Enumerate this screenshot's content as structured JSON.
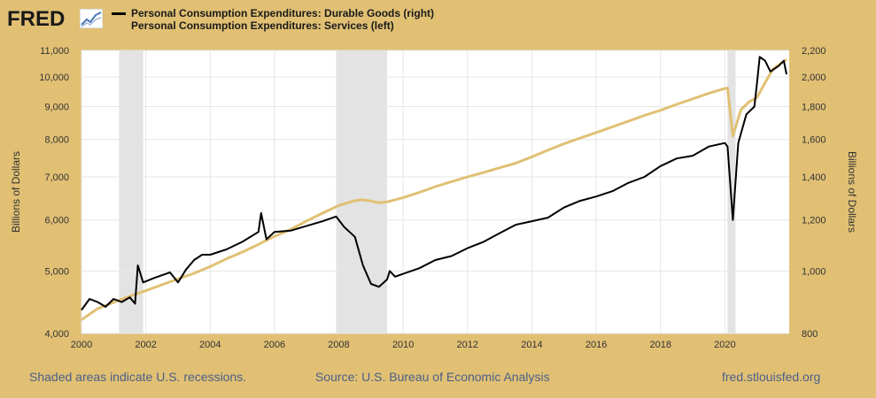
{
  "header": {
    "logo_text": "FRED",
    "logo_icon": "trend-chart-icon",
    "legend": [
      {
        "text": "Personal Consumption Expenditures: Durable Goods (right)",
        "color": "#000000"
      },
      {
        "text": "Personal Consumption Expenditures: Services (left)",
        "color": "#e1c074"
      }
    ]
  },
  "footer": {
    "recession_note": "Shaded areas indicate U.S. recessions.",
    "source": "Source: U.S. Bureau of Economic Analysis",
    "site": "fred.stlouisfed.org"
  },
  "chart_data": {
    "type": "line",
    "ylabel_left": "Billions of Dollars",
    "ylabel_right": "Billions of Dollars",
    "y_scale": "log",
    "ylim_left": [
      4000,
      11000
    ],
    "ylim_right": [
      800,
      2200
    ],
    "xlim": [
      "2000-01",
      "2021-12"
    ],
    "x_ticks": [
      "2000",
      "2002",
      "2004",
      "2006",
      "2008",
      "2010",
      "2012",
      "2014",
      "2016",
      "2018",
      "2020"
    ],
    "y_ticks_left": [
      "4,000",
      "5,000",
      "6,000",
      "7,000",
      "8,000",
      "9,000",
      "10,000",
      "11,000"
    ],
    "y_ticks_right": [
      "800",
      "1,000",
      "1,200",
      "1,400",
      "1,600",
      "1,800",
      "2,000",
      "2,200"
    ],
    "grid": true,
    "recessions": [
      [
        "2001-03",
        "2001-11"
      ],
      [
        "2007-12",
        "2009-06"
      ],
      [
        "2020-02",
        "2020-04"
      ]
    ],
    "series": [
      {
        "name": "Personal Consumption Expenditures: Durable Goods (right)",
        "axis": "right",
        "color": "#000000",
        "x": [
          "2000-01",
          "2000-04",
          "2000-07",
          "2000-10",
          "2001-01",
          "2001-04",
          "2001-07",
          "2001-09",
          "2001-10",
          "2001-12",
          "2002-04",
          "2002-07",
          "2002-10",
          "2003-01",
          "2003-04",
          "2003-07",
          "2003-10",
          "2004-01",
          "2004-07",
          "2005-01",
          "2005-07",
          "2005-08",
          "2005-10",
          "2006-01",
          "2006-07",
          "2007-01",
          "2007-07",
          "2007-12",
          "2008-03",
          "2008-07",
          "2008-10",
          "2009-01",
          "2009-04",
          "2009-07",
          "2009-08",
          "2009-10",
          "2010-01",
          "2010-07",
          "2011-01",
          "2011-07",
          "2012-01",
          "2012-07",
          "2013-01",
          "2013-07",
          "2014-01",
          "2014-07",
          "2015-01",
          "2015-07",
          "2016-01",
          "2016-07",
          "2017-01",
          "2017-07",
          "2018-01",
          "2018-07",
          "2019-01",
          "2019-07",
          "2020-01",
          "2020-02",
          "2020-04",
          "2020-06",
          "2020-09",
          "2020-12",
          "2021-01",
          "2021-02",
          "2021-04",
          "2021-06",
          "2021-09",
          "2021-11",
          "2021-12"
        ],
        "values": [
          870,
          905,
          895,
          880,
          905,
          895,
          910,
          890,
          1020,
          960,
          975,
          985,
          995,
          960,
          1005,
          1040,
          1060,
          1060,
          1080,
          1110,
          1150,
          1230,
          1120,
          1150,
          1155,
          1175,
          1195,
          1215,
          1170,
          1130,
          1020,
          955,
          945,
          970,
          1000,
          980,
          990,
          1010,
          1040,
          1055,
          1085,
          1110,
          1145,
          1180,
          1195,
          1210,
          1255,
          1285,
          1305,
          1330,
          1370,
          1400,
          1455,
          1495,
          1510,
          1560,
          1580,
          1560,
          1200,
          1580,
          1750,
          1800,
          1960,
          2150,
          2120,
          2040,
          2080,
          2120,
          2020
        ]
      },
      {
        "name": "Personal Consumption Expenditures: Services (left)",
        "axis": "left",
        "color": "#e1c074",
        "x": [
          "2000-01",
          "2000-07",
          "2001-01",
          "2001-07",
          "2002-01",
          "2002-07",
          "2003-01",
          "2003-07",
          "2004-01",
          "2004-07",
          "2005-01",
          "2005-07",
          "2006-01",
          "2006-07",
          "2007-01",
          "2007-07",
          "2008-01",
          "2008-07",
          "2008-10",
          "2009-01",
          "2009-04",
          "2009-07",
          "2010-01",
          "2010-07",
          "2011-01",
          "2011-07",
          "2012-01",
          "2012-07",
          "2013-01",
          "2013-07",
          "2014-01",
          "2014-07",
          "2015-01",
          "2015-07",
          "2016-01",
          "2016-07",
          "2017-01",
          "2017-07",
          "2018-01",
          "2018-07",
          "2019-01",
          "2019-07",
          "2020-01",
          "2020-02",
          "2020-04",
          "2020-07",
          "2020-10",
          "2021-01",
          "2021-04",
          "2021-07",
          "2021-12"
        ],
        "values": [
          4200,
          4370,
          4470,
          4570,
          4660,
          4760,
          4860,
          4960,
          5080,
          5220,
          5350,
          5500,
          5660,
          5800,
          5980,
          6150,
          6320,
          6430,
          6450,
          6420,
          6380,
          6400,
          6500,
          6620,
          6760,
          6880,
          7000,
          7110,
          7230,
          7350,
          7520,
          7700,
          7880,
          8040,
          8200,
          8370,
          8540,
          8720,
          8880,
          9070,
          9250,
          9440,
          9600,
          9620,
          8100,
          8900,
          9150,
          9300,
          9800,
          10300,
          10650
        ]
      }
    ]
  }
}
